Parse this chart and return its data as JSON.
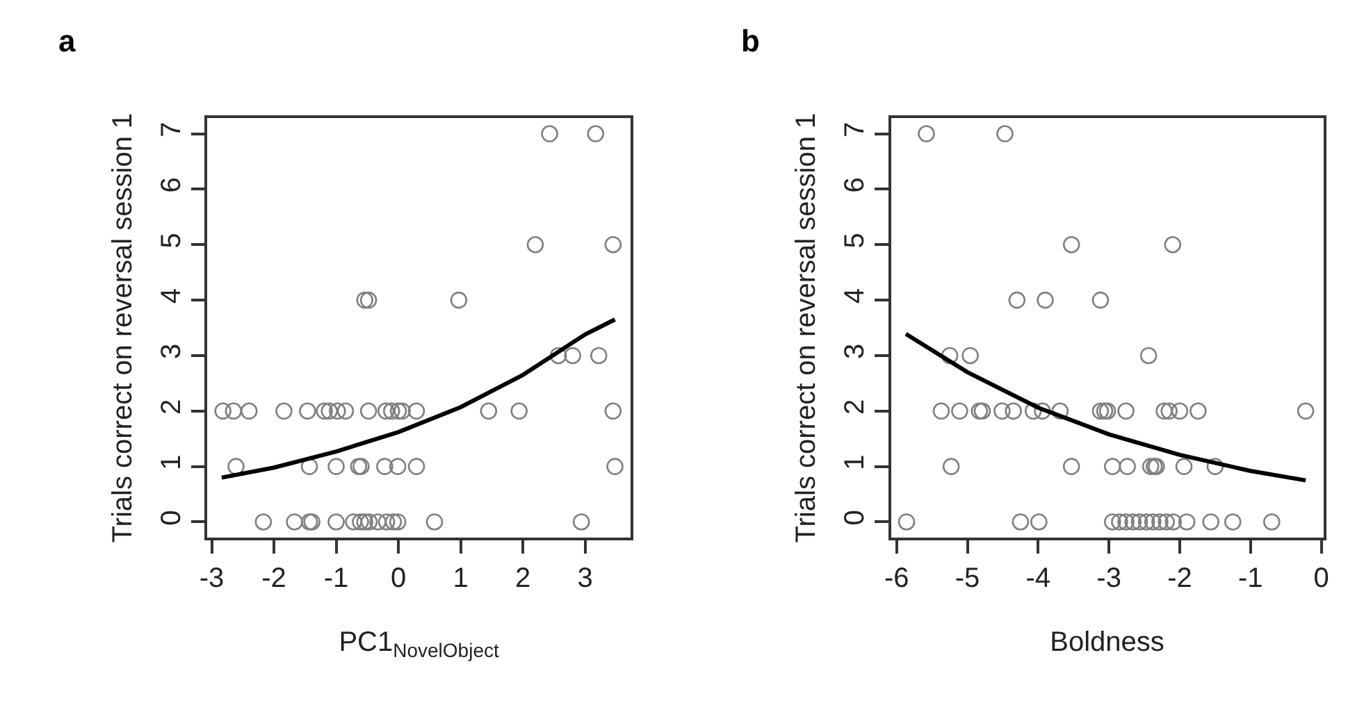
{
  "chart_data": [
    {
      "type": "scatter",
      "title": "a",
      "xlabel": "PC1$_{NovelObject}$",
      "ylabel": "Trials correct on reversal session 1",
      "xlim": [
        -3.07,
        3.73
      ],
      "ylim": [
        -0.28,
        7.28
      ],
      "xticks": [
        -3,
        -2,
        -1,
        0,
        1,
        2,
        3
      ],
      "yticks": [
        0,
        1,
        2,
        3,
        4,
        5,
        6,
        7
      ],
      "marker": "circle",
      "series": [
        {
          "color": "#808080",
          "x": [
            2.43,
            3.17,
            2.2,
            3.45,
            -0.54,
            -0.48,
            0.97,
            2.57,
            2.8,
            3.22,
            -2.82,
            -2.65,
            -2.4,
            -1.84,
            -1.46,
            -1.19,
            -1.11,
            -0.98,
            -0.85,
            -0.48,
            -0.2,
            -0.11,
            0.0,
            0.06,
            0.29,
            1.45,
            1.94,
            3.45,
            -2.61,
            -1.43,
            -1.0,
            -0.64,
            -0.6,
            -0.22,
            -0.01,
            0.29,
            3.48,
            -2.17,
            -1.67,
            -1.43,
            -1.39,
            -1.0,
            -0.72,
            -0.61,
            -0.54,
            -0.47,
            -0.33,
            -0.19,
            -0.08,
            -0.01,
            0.58,
            2.94
          ],
          "values": [
            7,
            7,
            5,
            5,
            4,
            4,
            4,
            3,
            3,
            3,
            2,
            2,
            2,
            2,
            2,
            2,
            2,
            2,
            2,
            2,
            2,
            2,
            2,
            2,
            2,
            2,
            2,
            2,
            1,
            1,
            1,
            1,
            1,
            1,
            1,
            1,
            1,
            0,
            0,
            0,
            0,
            0,
            0,
            0,
            0,
            0,
            0,
            0,
            0,
            0,
            0,
            0
          ]
        },
        {
          "type": "line",
          "color": "#000000",
          "marker": "none",
          "x": [
            -2.84,
            -2,
            -1,
            0,
            1,
            2,
            3,
            3.48
          ],
          "values": [
            0.8,
            0.98,
            1.27,
            1.62,
            2.07,
            2.65,
            3.38,
            3.65
          ]
        }
      ]
    },
    {
      "type": "scatter",
      "title": "b",
      "xlabel": "Boldness",
      "ylabel": "Trials correct on reversal session 1",
      "xlim": [
        -6.08,
        0.03
      ],
      "ylim": [
        -0.28,
        7.28
      ],
      "xticks": [
        -6,
        -5,
        -4,
        -3,
        -2,
        -1,
        0
      ],
      "yticks": [
        0,
        1,
        2,
        3,
        4,
        5,
        6,
        7
      ],
      "marker": "circle",
      "series": [
        {
          "color": "#808080",
          "x": [
            -5.58,
            -4.47,
            -3.53,
            -2.1,
            -4.3,
            -3.9,
            -3.12,
            -5.25,
            -4.96,
            -2.44,
            -5.37,
            -5.11,
            -4.83,
            -4.79,
            -4.51,
            -4.35,
            -4.07,
            -3.94,
            -3.69,
            -3.12,
            -3.06,
            -3.02,
            -2.76,
            -2.22,
            -2.15,
            -2.0,
            -1.74,
            -0.22,
            -5.23,
            -3.53,
            -2.95,
            -2.74,
            -2.41,
            -2.36,
            -2.33,
            -1.94,
            -1.5,
            -5.86,
            -4.25,
            -3.99,
            -2.95,
            -2.85,
            -2.76,
            -2.66,
            -2.57,
            -2.47,
            -2.38,
            -2.28,
            -2.19,
            -2.09,
            -1.9,
            -1.56,
            -1.25,
            -0.7
          ],
          "values": [
            7,
            7,
            5,
            5,
            4,
            4,
            4,
            3,
            3,
            3,
            2,
            2,
            2,
            2,
            2,
            2,
            2,
            2,
            2,
            2,
            2,
            2,
            2,
            2,
            2,
            2,
            2,
            2,
            1,
            1,
            1,
            1,
            1,
            1,
            1,
            1,
            1,
            0,
            0,
            0,
            0,
            0,
            0,
            0,
            0,
            0,
            0,
            0,
            0,
            0,
            0,
            0,
            0,
            0
          ]
        },
        {
          "type": "line",
          "color": "#000000",
          "marker": "none",
          "x": [
            -5.87,
            -5,
            -4,
            -3,
            -2,
            -1,
            -0.22
          ],
          "values": [
            3.39,
            2.7,
            2.06,
            1.58,
            1.21,
            0.92,
            0.75
          ]
        }
      ]
    }
  ]
}
